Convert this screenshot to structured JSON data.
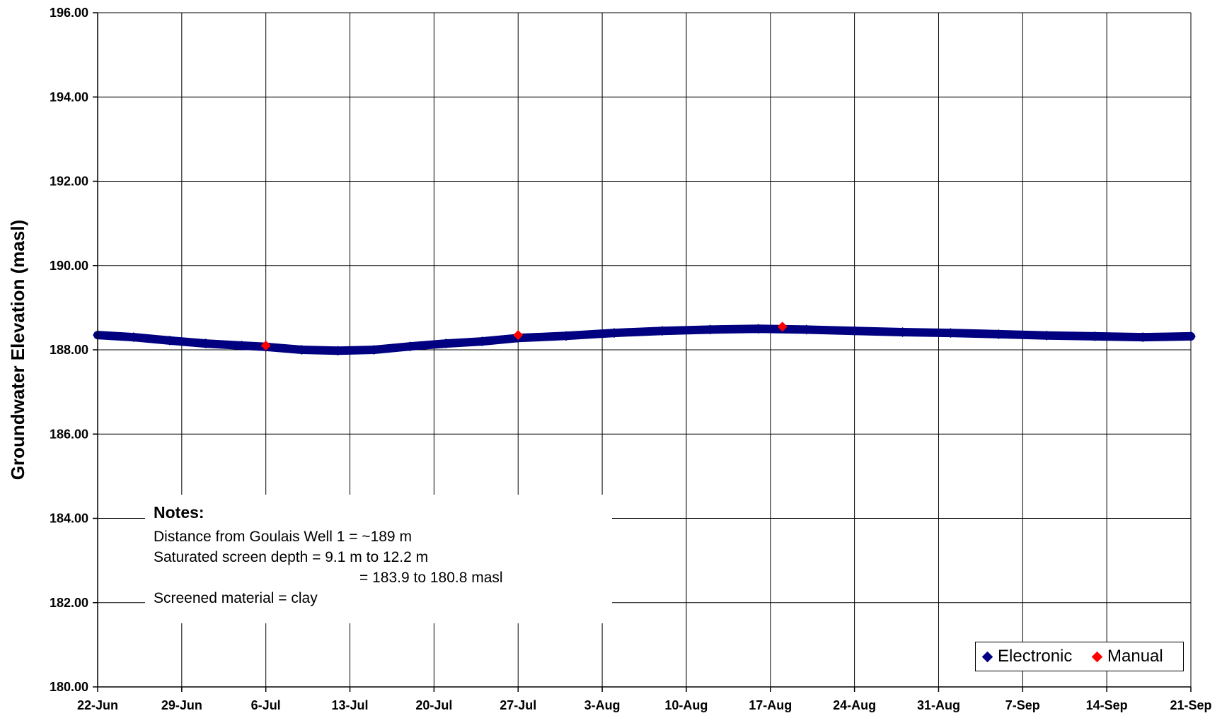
{
  "chart_data": {
    "type": "scatter",
    "title": "",
    "xlabel": "",
    "ylabel": "Groundwater Elevation (masl)",
    "ylim": [
      180.0,
      196.0
    ],
    "y_ticks": [
      "180.00",
      "182.00",
      "184.00",
      "186.00",
      "188.00",
      "190.00",
      "192.00",
      "194.00",
      "196.00"
    ],
    "x_range": [
      "2008-06-22",
      "2008-09-21"
    ],
    "x_ticks": [
      "22-Jun",
      "29-Jun",
      "6-Jul",
      "13-Jul",
      "20-Jul",
      "27-Jul",
      "3-Aug",
      "10-Aug",
      "17-Aug",
      "24-Aug",
      "31-Aug",
      "7-Sep",
      "14-Sep",
      "21-Sep"
    ],
    "grid": true,
    "legend_position": "bottom-right",
    "series": [
      {
        "name": "Electronic",
        "color": "#000080",
        "marker": "diamond",
        "points": [
          [
            "2008-06-22",
            188.35
          ],
          [
            "2008-06-25",
            188.3
          ],
          [
            "2008-06-28",
            188.22
          ],
          [
            "2008-07-01",
            188.15
          ],
          [
            "2008-07-04",
            188.1
          ],
          [
            "2008-07-06",
            188.07
          ],
          [
            "2008-07-09",
            188.0
          ],
          [
            "2008-07-12",
            187.98
          ],
          [
            "2008-07-15",
            188.0
          ],
          [
            "2008-07-18",
            188.08
          ],
          [
            "2008-07-21",
            188.15
          ],
          [
            "2008-07-24",
            188.2
          ],
          [
            "2008-07-27",
            188.28
          ],
          [
            "2008-07-31",
            188.33
          ],
          [
            "2008-08-04",
            188.4
          ],
          [
            "2008-08-08",
            188.45
          ],
          [
            "2008-08-12",
            188.48
          ],
          [
            "2008-08-16",
            188.5
          ],
          [
            "2008-08-20",
            188.48
          ],
          [
            "2008-08-24",
            188.45
          ],
          [
            "2008-08-28",
            188.42
          ],
          [
            "2008-09-01",
            188.4
          ],
          [
            "2008-09-05",
            188.37
          ],
          [
            "2008-09-09",
            188.34
          ],
          [
            "2008-09-13",
            188.32
          ],
          [
            "2008-09-17",
            188.3
          ],
          [
            "2008-09-21",
            188.32
          ]
        ]
      },
      {
        "name": "Manual",
        "color": "#ff0000",
        "marker": "diamond",
        "points": [
          [
            "2008-07-06",
            188.1
          ],
          [
            "2008-07-27",
            188.35
          ],
          [
            "2008-08-18",
            188.55
          ]
        ]
      }
    ]
  },
  "notes": {
    "title": "Notes:",
    "line1": "Distance from Goulais Well 1 = ~189 m",
    "line2": "Saturated screen depth = 9.1 m to 12.2 m",
    "line3": "= 183.9 to 180.8 masl",
    "line4": "Screened material = clay"
  },
  "legend": {
    "electronic_label": "Electronic",
    "manual_label": "Manual"
  }
}
